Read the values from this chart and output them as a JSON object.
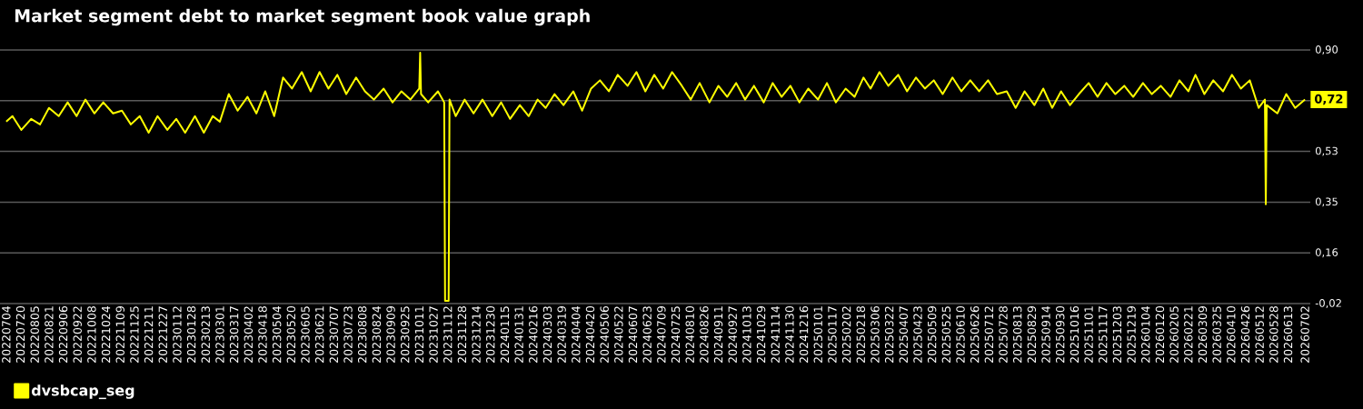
{
  "chart_data": {
    "type": "line",
    "title": "Market segment debt to market segment book value graph",
    "xlim": [
      "2022-06-27",
      "2026-07-08"
    ],
    "ylim": [
      -0.02,
      0.9
    ],
    "xticks": [
      {
        "value": "2022-07-04",
        "label": "20220704"
      },
      {
        "value": "2022-07-20",
        "label": "20220720"
      },
      {
        "value": "2022-08-05",
        "label": "20220805"
      },
      {
        "value": "2022-08-21",
        "label": "20220821"
      },
      {
        "value": "2022-09-06",
        "label": "20220906"
      },
      {
        "value": "2022-09-22",
        "label": "20220922"
      },
      {
        "value": "2022-10-08",
        "label": "20221008"
      },
      {
        "value": "2022-10-24",
        "label": "20221024"
      },
      {
        "value": "2022-11-09",
        "label": "20221109"
      },
      {
        "value": "2022-11-25",
        "label": "20221125"
      },
      {
        "value": "2022-12-11",
        "label": "20221211"
      },
      {
        "value": "2022-12-27",
        "label": "20221227"
      },
      {
        "value": "2023-01-12",
        "label": "20230112"
      },
      {
        "value": "2023-01-28",
        "label": "20230128"
      },
      {
        "value": "2023-02-13",
        "label": "20230213"
      },
      {
        "value": "2023-03-01",
        "label": "20230301"
      },
      {
        "value": "2023-03-17",
        "label": "20230317"
      },
      {
        "value": "2023-04-02",
        "label": "20230402"
      },
      {
        "value": "2023-04-18",
        "label": "20230418"
      },
      {
        "value": "2023-05-04",
        "label": "20230504"
      },
      {
        "value": "2023-05-20",
        "label": "20230520"
      },
      {
        "value": "2023-06-05",
        "label": "20230605"
      },
      {
        "value": "2023-06-21",
        "label": "20230621"
      },
      {
        "value": "2023-07-07",
        "label": "20230707"
      },
      {
        "value": "2023-07-23",
        "label": "20230723"
      },
      {
        "value": "2023-08-08",
        "label": "20230808"
      },
      {
        "value": "2023-08-24",
        "label": "20230824"
      },
      {
        "value": "2023-09-09",
        "label": "20230909"
      },
      {
        "value": "2023-09-25",
        "label": "20230925"
      },
      {
        "value": "2023-10-11",
        "label": "20231011"
      },
      {
        "value": "2023-10-27",
        "label": "20231027"
      },
      {
        "value": "2023-11-12",
        "label": "20231112"
      },
      {
        "value": "2023-11-28",
        "label": "20231128"
      },
      {
        "value": "2023-12-14",
        "label": "20231214"
      },
      {
        "value": "2023-12-30",
        "label": "20231230"
      },
      {
        "value": "2024-01-15",
        "label": "20240115"
      },
      {
        "value": "2024-01-31",
        "label": "20240131"
      },
      {
        "value": "2024-02-16",
        "label": "20240216"
      },
      {
        "value": "2024-03-03",
        "label": "20240303"
      },
      {
        "value": "2024-03-19",
        "label": "20240319"
      },
      {
        "value": "2024-04-04",
        "label": "20240404"
      },
      {
        "value": "2024-04-20",
        "label": "20240420"
      },
      {
        "value": "2024-05-06",
        "label": "20240506"
      },
      {
        "value": "2024-05-22",
        "label": "20240522"
      },
      {
        "value": "2024-06-07",
        "label": "20240607"
      },
      {
        "value": "2024-06-23",
        "label": "20240623"
      },
      {
        "value": "2024-07-09",
        "label": "20240709"
      },
      {
        "value": "2024-07-25",
        "label": "20240725"
      },
      {
        "value": "2024-08-10",
        "label": "20240810"
      },
      {
        "value": "2024-08-26",
        "label": "20240826"
      },
      {
        "value": "2024-09-11",
        "label": "20240911"
      },
      {
        "value": "2024-09-27",
        "label": "20240927"
      },
      {
        "value": "2024-10-13",
        "label": "20241013"
      },
      {
        "value": "2024-10-29",
        "label": "20241029"
      },
      {
        "value": "2024-11-14",
        "label": "20241114"
      },
      {
        "value": "2024-11-30",
        "label": "20241130"
      },
      {
        "value": "2024-12-16",
        "label": "20241216"
      },
      {
        "value": "2025-01-01",
        "label": "20250101"
      },
      {
        "value": "2025-01-17",
        "label": "20250117"
      },
      {
        "value": "2025-02-02",
        "label": "20250202"
      },
      {
        "value": "2025-02-18",
        "label": "20250218"
      },
      {
        "value": "2025-03-06",
        "label": "20250306"
      },
      {
        "value": "2025-03-22",
        "label": "20250322"
      },
      {
        "value": "2025-04-07",
        "label": "20250407"
      },
      {
        "value": "2025-04-23",
        "label": "20250423"
      },
      {
        "value": "2025-05-09",
        "label": "20250509"
      },
      {
        "value": "2025-05-25",
        "label": "20250525"
      },
      {
        "value": "2025-06-10",
        "label": "20250610"
      },
      {
        "value": "2025-06-26",
        "label": "20250626"
      },
      {
        "value": "2025-07-12",
        "label": "20250712"
      },
      {
        "value": "2025-07-28",
        "label": "20250728"
      },
      {
        "value": "2025-08-13",
        "label": "20250813"
      },
      {
        "value": "2025-08-29",
        "label": "20250829"
      },
      {
        "value": "2025-09-14",
        "label": "20250914"
      },
      {
        "value": "2025-09-30",
        "label": "20250930"
      },
      {
        "value": "2025-10-16",
        "label": "20251016"
      },
      {
        "value": "2025-11-01",
        "label": "20251101"
      },
      {
        "value": "2025-11-17",
        "label": "20251117"
      },
      {
        "value": "2025-12-03",
        "label": "20251203"
      },
      {
        "value": "2025-12-19",
        "label": "20251219"
      },
      {
        "value": "2026-01-04",
        "label": "20260104"
      },
      {
        "value": "2026-01-20",
        "label": "20260120"
      },
      {
        "value": "2026-02-05",
        "label": "20260205"
      },
      {
        "value": "2026-02-21",
        "label": "20260221"
      },
      {
        "value": "2026-03-09",
        "label": "20260309"
      },
      {
        "value": "2026-03-25",
        "label": "20260325"
      },
      {
        "value": "2026-04-10",
        "label": "20260410"
      },
      {
        "value": "2026-04-26",
        "label": "20260426"
      },
      {
        "value": "2026-05-12",
        "label": "20260512"
      },
      {
        "value": "2026-05-28",
        "label": "20260528"
      },
      {
        "value": "2026-06-13",
        "label": "20260613"
      },
      {
        "value": "2026-07-02",
        "label": "20260702"
      }
    ],
    "yticks": [
      {
        "value": -0.02,
        "label": "-0,02"
      },
      {
        "value": 0.164,
        "label": "0,16"
      },
      {
        "value": 0.348,
        "label": "0,35"
      },
      {
        "value": 0.532,
        "label": "0,53"
      },
      {
        "value": 0.716,
        "label": null
      },
      {
        "value": 0.9,
        "label": "0,90"
      }
    ],
    "grid": "y",
    "legend": "bottom left",
    "annotations": [
      {
        "text": "0,72",
        "x": "2026-07-02",
        "y": 0.72
      }
    ],
    "series": [
      {
        "name": "dvsbcap_seg",
        "color": "#ffff00",
        "x": [
          "2022-07-04",
          "2022-07-11",
          "2022-07-21",
          "2022-08-01",
          "2022-08-11",
          "2022-08-21",
          "2022-09-01",
          "2022-09-11",
          "2022-09-21",
          "2022-10-01",
          "2022-10-11",
          "2022-10-21",
          "2022-11-01",
          "2022-11-11",
          "2022-11-21",
          "2022-12-01",
          "2022-12-11",
          "2022-12-21",
          "2023-01-01",
          "2023-01-11",
          "2023-01-21",
          "2023-02-01",
          "2023-02-11",
          "2023-02-21",
          "2023-03-01",
          "2023-03-11",
          "2023-03-21",
          "2023-04-01",
          "2023-04-11",
          "2023-04-21",
          "2023-05-01",
          "2023-05-11",
          "2023-05-21",
          "2023-06-01",
          "2023-06-11",
          "2023-06-21",
          "2023-07-01",
          "2023-07-11",
          "2023-07-21",
          "2023-08-01",
          "2023-08-11",
          "2023-08-21",
          "2023-09-01",
          "2023-09-11",
          "2023-09-21",
          "2023-10-01",
          "2023-10-11",
          "2023-10-12",
          "2023-10-13",
          "2023-10-21",
          "2023-11-01",
          "2023-11-08",
          "2023-11-09",
          "2023-11-13",
          "2023-11-14",
          "2023-11-21",
          "2023-12-01",
          "2023-12-11",
          "2023-12-21",
          "2024-01-01",
          "2024-01-11",
          "2024-01-21",
          "2024-02-01",
          "2024-02-11",
          "2024-02-21",
          "2024-03-01",
          "2024-03-11",
          "2024-03-21",
          "2024-04-01",
          "2024-04-11",
          "2024-04-21",
          "2024-05-01",
          "2024-05-11",
          "2024-05-21",
          "2024-06-01",
          "2024-06-11",
          "2024-06-21",
          "2024-07-01",
          "2024-07-11",
          "2024-07-21",
          "2024-08-01",
          "2024-08-11",
          "2024-08-21",
          "2024-09-01",
          "2024-09-11",
          "2024-09-21",
          "2024-10-01",
          "2024-10-11",
          "2024-10-21",
          "2024-11-01",
          "2024-11-11",
          "2024-11-21",
          "2024-12-01",
          "2024-12-11",
          "2024-12-21",
          "2025-01-01",
          "2025-01-11",
          "2025-01-21",
          "2025-02-01",
          "2025-02-11",
          "2025-02-21",
          "2025-03-01",
          "2025-03-11",
          "2025-03-21",
          "2025-04-01",
          "2025-04-11",
          "2025-04-21",
          "2025-05-01",
          "2025-05-11",
          "2025-05-21",
          "2025-06-01",
          "2025-06-11",
          "2025-06-21",
          "2025-07-01",
          "2025-07-11",
          "2025-07-21",
          "2025-08-01",
          "2025-08-11",
          "2025-08-21",
          "2025-09-01",
          "2025-09-11",
          "2025-09-21",
          "2025-10-01",
          "2025-10-11",
          "2025-10-21",
          "2025-11-01",
          "2025-11-11",
          "2025-11-21",
          "2025-12-01",
          "2025-12-11",
          "2025-12-21",
          "2026-01-01",
          "2026-01-11",
          "2026-01-21",
          "2026-02-01",
          "2026-02-11",
          "2026-02-21",
          "2026-03-01",
          "2026-03-11",
          "2026-03-21",
          "2026-04-01",
          "2026-04-11",
          "2026-04-21",
          "2026-05-01",
          "2026-05-11",
          "2026-05-18",
          "2026-05-19",
          "2026-05-20",
          "2026-06-01",
          "2026-06-11",
          "2026-06-21",
          "2026-07-02"
        ],
        "values": [
          0.64,
          0.66,
          0.61,
          0.65,
          0.63,
          0.69,
          0.66,
          0.71,
          0.66,
          0.72,
          0.67,
          0.71,
          0.67,
          0.68,
          0.63,
          0.66,
          0.6,
          0.66,
          0.61,
          0.65,
          0.6,
          0.66,
          0.6,
          0.66,
          0.64,
          0.74,
          0.68,
          0.73,
          0.67,
          0.75,
          0.66,
          0.8,
          0.76,
          0.82,
          0.75,
          0.82,
          0.76,
          0.81,
          0.74,
          0.8,
          0.75,
          0.72,
          0.76,
          0.71,
          0.75,
          0.72,
          0.76,
          0.89,
          0.74,
          0.71,
          0.75,
          0.71,
          -0.01,
          -0.01,
          0.72,
          0.66,
          0.72,
          0.67,
          0.72,
          0.66,
          0.71,
          0.65,
          0.7,
          0.66,
          0.72,
          0.69,
          0.74,
          0.7,
          0.75,
          0.68,
          0.76,
          0.79,
          0.75,
          0.81,
          0.77,
          0.82,
          0.75,
          0.81,
          0.76,
          0.82,
          0.77,
          0.72,
          0.78,
          0.71,
          0.77,
          0.73,
          0.78,
          0.72,
          0.77,
          0.71,
          0.78,
          0.73,
          0.77,
          0.71,
          0.76,
          0.72,
          0.78,
          0.71,
          0.76,
          0.73,
          0.8,
          0.76,
          0.82,
          0.77,
          0.81,
          0.75,
          0.8,
          0.76,
          0.79,
          0.74,
          0.8,
          0.75,
          0.79,
          0.75,
          0.79,
          0.74,
          0.75,
          0.69,
          0.75,
          0.7,
          0.76,
          0.69,
          0.75,
          0.7,
          0.74,
          0.78,
          0.73,
          0.78,
          0.74,
          0.77,
          0.73,
          0.78,
          0.74,
          0.77,
          0.73,
          0.79,
          0.75,
          0.81,
          0.74,
          0.79,
          0.75,
          0.81,
          0.76,
          0.79,
          0.69,
          0.72,
          0.34,
          0.7,
          0.67,
          0.74,
          0.69,
          0.72
        ]
      }
    ]
  }
}
